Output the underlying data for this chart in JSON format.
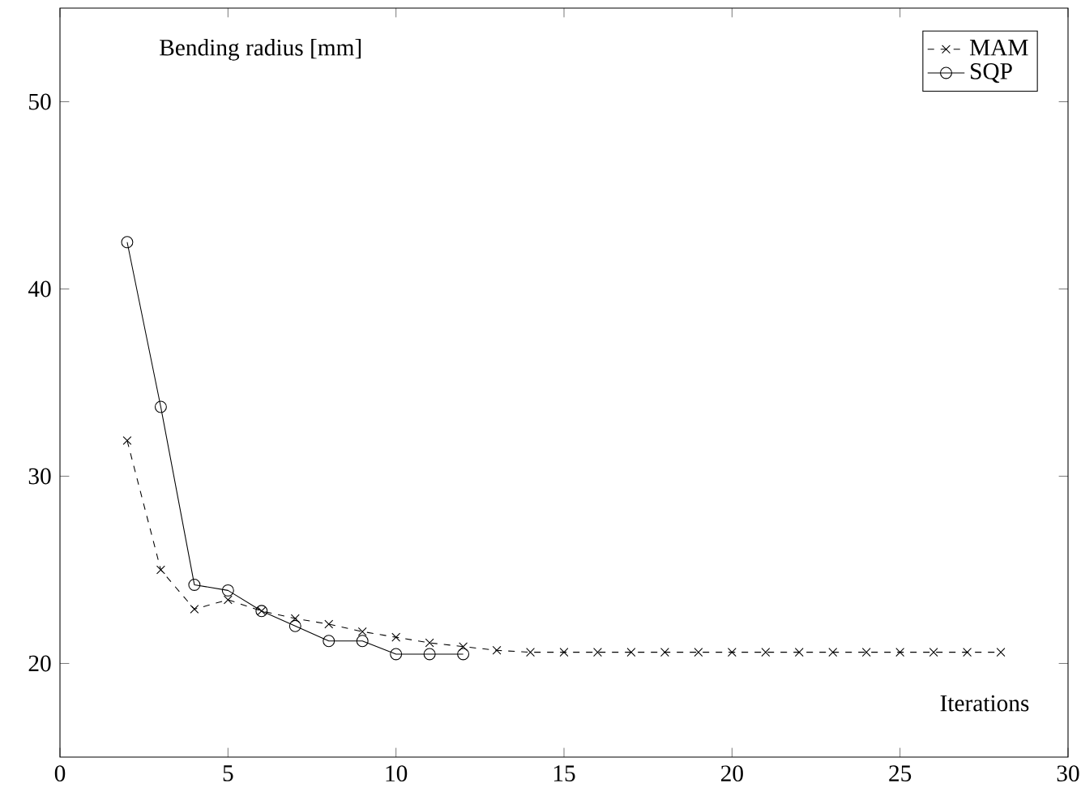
{
  "chart_data": {
    "type": "line",
    "xlabel": "Iterations",
    "ylabel": "Bending radius [mm]",
    "xlim": [
      0,
      30
    ],
    "ylim": [
      15,
      55
    ],
    "xticks": [
      0,
      5,
      10,
      15,
      20,
      25,
      30
    ],
    "yticks": [
      20,
      30,
      40,
      50
    ],
    "grid": false,
    "legend": "top right",
    "series": [
      {
        "name": "MAM",
        "color": "#000000",
        "marker": "cross",
        "line_style": "dashed",
        "x": [
          2,
          3,
          4,
          5,
          6,
          7,
          8,
          9,
          10,
          11,
          12,
          13,
          14,
          15,
          16,
          17,
          18,
          19,
          20,
          21,
          22,
          23,
          24,
          25,
          26,
          27,
          28
        ],
        "values": [
          31.9,
          25.0,
          22.9,
          23.4,
          22.8,
          22.4,
          22.1,
          21.7,
          21.4,
          21.1,
          20.9,
          20.7,
          20.6,
          20.6,
          20.6,
          20.6,
          20.6,
          20.6,
          20.6,
          20.6,
          20.6,
          20.6,
          20.6,
          20.6,
          20.6,
          20.6,
          20.6
        ]
      },
      {
        "name": "SQP",
        "color": "#000000",
        "marker": "circle",
        "line_style": "solid",
        "x": [
          2,
          3,
          4,
          5,
          6,
          7,
          8,
          9,
          10,
          11,
          12
        ],
        "values": [
          42.5,
          33.7,
          24.2,
          23.9,
          22.8,
          22.0,
          21.2,
          21.2,
          20.5,
          20.5,
          20.5
        ]
      }
    ]
  }
}
